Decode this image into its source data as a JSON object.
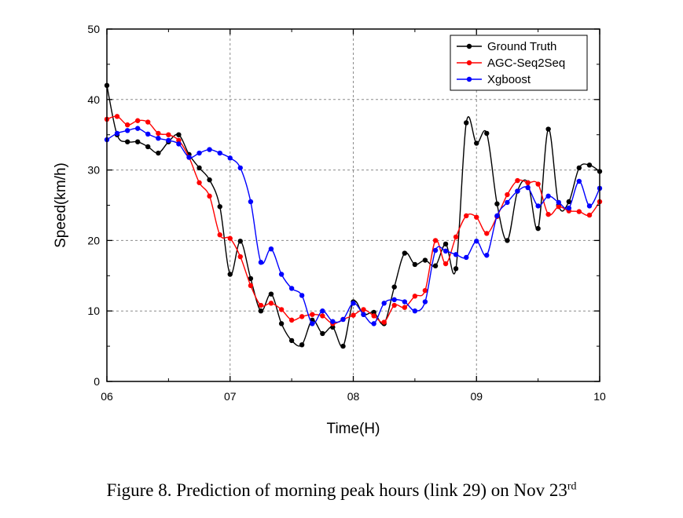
{
  "caption": {
    "text": "Figure 8. Prediction of morning peak hours (link 29) on Nov 23",
    "superscript": "rd"
  },
  "chart_data": {
    "type": "line",
    "title": "",
    "xlabel": "Time(H)",
    "ylabel": "Speed(km/h)",
    "xlim": [
      6,
      10
    ],
    "ylim": [
      0,
      50
    ],
    "x_tick_values": [
      6,
      7,
      8,
      9,
      10
    ],
    "x_tick_labels": [
      "06",
      "07",
      "08",
      "09",
      "10"
    ],
    "y_tick_values": [
      0,
      10,
      20,
      30,
      40,
      50
    ],
    "y_tick_labels": [
      "0",
      "10",
      "20",
      "30",
      "40",
      "50"
    ],
    "grid": true,
    "grid_style": "dashed",
    "legend_position": "top-right",
    "series": [
      {
        "name": "Ground Truth",
        "color": "#000000",
        "x": [
          6.0,
          6.083,
          6.167,
          6.25,
          6.333,
          6.417,
          6.5,
          6.583,
          6.667,
          6.75,
          6.833,
          6.917,
          7.0,
          7.083,
          7.167,
          7.25,
          7.333,
          7.417,
          7.5,
          7.583,
          7.667,
          7.75,
          7.833,
          7.917,
          8.0,
          8.083,
          8.167,
          8.25,
          8.333,
          8.417,
          8.5,
          8.583,
          8.667,
          8.75,
          8.833,
          8.917,
          9.0,
          9.083,
          9.167,
          9.25,
          9.333,
          9.417,
          9.5,
          9.583,
          9.667,
          9.75,
          9.833,
          9.917,
          10.0
        ],
        "y": [
          42,
          35,
          34,
          34,
          33.3,
          32.4,
          34,
          35,
          32.2,
          30.3,
          28.6,
          24.8,
          15.2,
          19.9,
          14.6,
          10,
          12.4,
          8.2,
          5.8,
          5.2,
          8.7,
          6.8,
          7.7,
          5,
          11.3,
          9.5,
          9.8,
          8.2,
          13.4,
          18.2,
          16.6,
          17.2,
          16.4,
          19.5,
          16,
          36.7,
          33.8,
          35.2,
          25.2,
          20,
          27,
          28.2,
          21.7,
          35.8,
          25,
          25.5,
          30.3,
          30.7,
          29.8
        ]
      },
      {
        "name": "AGC-Seq2Seq",
        "color": "#ff0000",
        "x": [
          6.0,
          6.083,
          6.167,
          6.25,
          6.333,
          6.417,
          6.5,
          6.583,
          6.667,
          6.75,
          6.833,
          6.917,
          7.0,
          7.083,
          7.167,
          7.25,
          7.333,
          7.417,
          7.5,
          7.583,
          7.667,
          7.75,
          7.833,
          7.917,
          8.0,
          8.083,
          8.167,
          8.25,
          8.333,
          8.417,
          8.5,
          8.583,
          8.667,
          8.75,
          8.833,
          8.917,
          9.0,
          9.083,
          9.167,
          9.25,
          9.333,
          9.417,
          9.5,
          9.583,
          9.667,
          9.75,
          9.833,
          9.917,
          10.0
        ],
        "y": [
          37.2,
          37.6,
          36.4,
          37,
          36.8,
          35.2,
          35,
          34.2,
          31.8,
          28.2,
          26.3,
          20.8,
          20.3,
          17.7,
          13.6,
          10.8,
          11.1,
          10.2,
          8.7,
          9.2,
          9.5,
          9.3,
          8.2,
          8.8,
          9.4,
          10.2,
          9.3,
          8.4,
          10.8,
          10.5,
          12.1,
          12.9,
          20,
          16.7,
          20.5,
          23.5,
          23.3,
          21,
          23.4,
          26.5,
          28.5,
          28.2,
          28,
          23.7,
          24.8,
          24.2,
          24.1,
          23.6,
          25.5
        ]
      },
      {
        "name": "Xgboost",
        "color": "#0000ff",
        "x": [
          6.0,
          6.083,
          6.167,
          6.25,
          6.333,
          6.417,
          6.5,
          6.583,
          6.667,
          6.75,
          6.833,
          6.917,
          7.0,
          7.083,
          7.167,
          7.25,
          7.333,
          7.417,
          7.5,
          7.583,
          7.667,
          7.75,
          7.833,
          7.917,
          8.0,
          8.083,
          8.167,
          8.25,
          8.333,
          8.417,
          8.5,
          8.583,
          8.667,
          8.75,
          8.833,
          8.917,
          9.0,
          9.083,
          9.167,
          9.25,
          9.333,
          9.417,
          9.5,
          9.583,
          9.667,
          9.75,
          9.833,
          9.917,
          10.0
        ],
        "y": [
          34.3,
          35.2,
          35.6,
          35.9,
          35.1,
          34.5,
          34.2,
          33.7,
          31.8,
          32.4,
          32.9,
          32.4,
          31.7,
          30.3,
          25.5,
          16.9,
          18.8,
          15.2,
          13.2,
          12.2,
          8.2,
          10,
          8.5,
          8.8,
          11.1,
          9.5,
          8.2,
          11.1,
          11.6,
          11.3,
          10,
          11.3,
          18.6,
          18.5,
          18,
          17.6,
          19.9,
          17.9,
          23.5,
          25.4,
          27,
          27.5,
          24.9,
          26.3,
          25.4,
          24.6,
          28.4,
          24.9,
          27.4
        ]
      }
    ]
  }
}
